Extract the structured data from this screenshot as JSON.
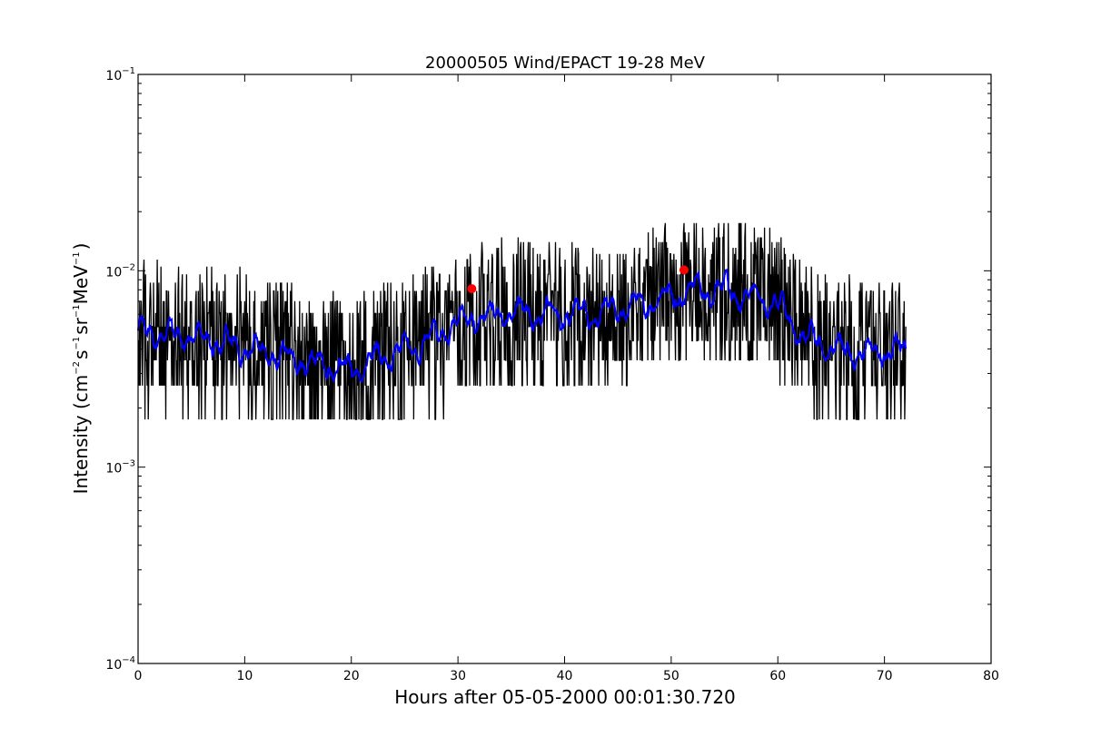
{
  "chart_data": {
    "type": "line",
    "title": "20000505 Wind/EPACT 19-28 MeV",
    "xlabel": "Hours after 05-05-2000 00:01:30.720",
    "ylabel": {
      "prefix": "Intensity (cm",
      "e1": "−2",
      "s": "s",
      "e2": "−1",
      "sr": "sr",
      "e3": "−1",
      "mev": "MeV",
      "e4": "−1",
      "suffix": ")"
    },
    "xlim": [
      0,
      80
    ],
    "ylim": [
      0.0001,
      0.1
    ],
    "yscale": "log",
    "xticks": [
      {
        "value": 0,
        "label": "0"
      },
      {
        "value": 10,
        "label": "10"
      },
      {
        "value": 20,
        "label": "20"
      },
      {
        "value": 30,
        "label": "30"
      },
      {
        "value": 40,
        "label": "40"
      },
      {
        "value": 50,
        "label": "50"
      },
      {
        "value": 60,
        "label": "60"
      },
      {
        "value": 70,
        "label": "70"
      },
      {
        "value": 80,
        "label": "80"
      }
    ],
    "yticks": [
      {
        "value": 0.0001,
        "base": "10",
        "exp": "−4"
      },
      {
        "value": 0.001,
        "base": "10",
        "exp": "−3"
      },
      {
        "value": 0.01,
        "base": "10",
        "exp": "−2"
      },
      {
        "value": 0.1,
        "base": "10",
        "exp": "−1"
      }
    ],
    "grid": false,
    "series": [
      {
        "color": "#000000",
        "style": "noisy",
        "x_range": [
          0,
          72
        ],
        "step": 0.05,
        "levels": [
          0.00087,
          0.00175,
          0.0026,
          0.0035,
          0.0044,
          0.0052,
          0.0061,
          0.007,
          0.0079,
          0.0087,
          0.0096,
          0.0105,
          0.0114,
          0.0122,
          0.0131,
          0.014,
          0.0148,
          0.0157,
          0.0166,
          0.0175
        ],
        "trend": [
          [
            0,
            0.0049
          ],
          [
            5,
            0.0046
          ],
          [
            10,
            0.0041
          ],
          [
            15,
            0.0035
          ],
          [
            20,
            0.0031
          ],
          [
            24,
            0.0038
          ],
          [
            28,
            0.0047
          ],
          [
            31,
            0.0058
          ],
          [
            35,
            0.0061
          ],
          [
            40,
            0.006
          ],
          [
            45,
            0.0064
          ],
          [
            48,
            0.0068
          ],
          [
            51,
            0.0077
          ],
          [
            55,
            0.0081
          ],
          [
            60,
            0.0068
          ],
          [
            62,
            0.0048
          ],
          [
            65,
            0.004
          ],
          [
            68,
            0.0038
          ],
          [
            72,
            0.0039
          ]
        ]
      },
      {
        "color": "#0000ff",
        "style": "smoothed",
        "x_range": [
          0,
          72
        ],
        "step": 0.05,
        "trend": [
          [
            0,
            0.0049
          ],
          [
            5,
            0.0046
          ],
          [
            10,
            0.0041
          ],
          [
            15,
            0.0035
          ],
          [
            20,
            0.0031
          ],
          [
            24,
            0.0038
          ],
          [
            28,
            0.0047
          ],
          [
            31,
            0.0058
          ],
          [
            35,
            0.0061
          ],
          [
            40,
            0.006
          ],
          [
            45,
            0.0064
          ],
          [
            48,
            0.0068
          ],
          [
            51,
            0.0077
          ],
          [
            55,
            0.0081
          ],
          [
            60,
            0.0068
          ],
          [
            62,
            0.0048
          ],
          [
            65,
            0.004
          ],
          [
            68,
            0.0038
          ],
          [
            72,
            0.0039
          ]
        ]
      }
    ],
    "markers": [
      {
        "x": 31.3,
        "y": 0.0081,
        "color": "#ff0000"
      },
      {
        "x": 51.2,
        "y": 0.0101,
        "color": "#ff0000"
      }
    ]
  }
}
